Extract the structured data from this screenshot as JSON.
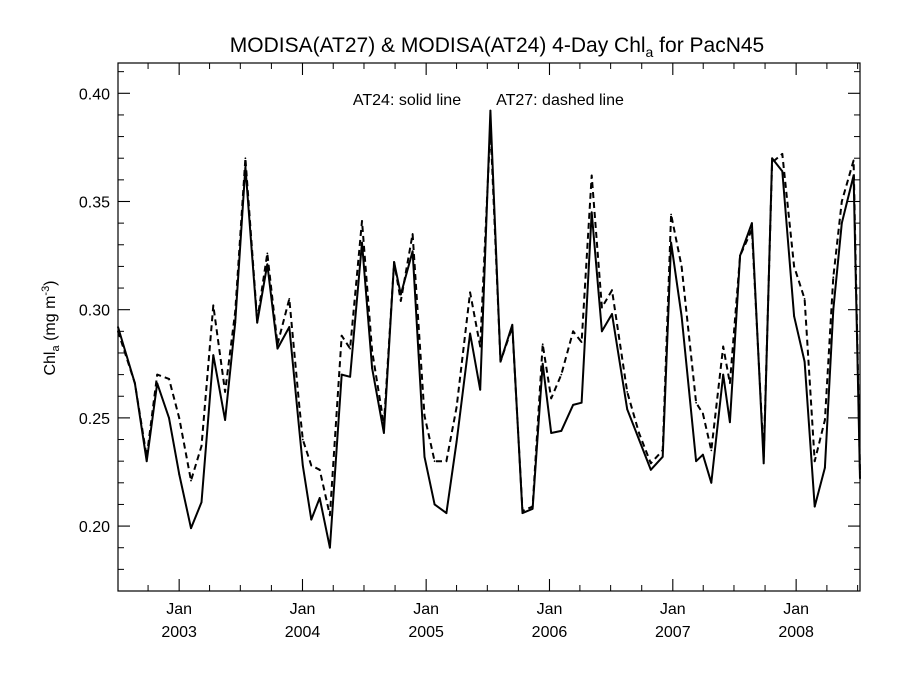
{
  "chart_data": {
    "type": "line",
    "title": "MODISA(AT27) & MODISA(AT24) 4-Day Chl",
    "title_subscript": "a",
    "title_suffix": " for PacN45",
    "ylabel": "Chl",
    "ylabel_subscript": "a",
    "ylabel_units": " (mg m",
    "ylabel_units_sup": "-3",
    "ylabel_units_close": ")",
    "annotation_solid": "AT24: solid line",
    "annotation_dashed": "AT27: dashed line",
    "ylim": [
      0.17,
      0.414
    ],
    "y_ticks": [
      {
        "value": 0.2,
        "label": "0.20"
      },
      {
        "value": 0.25,
        "label": "0.25"
      },
      {
        "value": 0.3,
        "label": "0.30"
      },
      {
        "value": 0.35,
        "label": "0.35"
      },
      {
        "value": 0.4,
        "label": "0.40"
      }
    ],
    "xlim": [
      "2002-07-04",
      "2008-07-08"
    ],
    "x_ticks": [
      {
        "date": "2003-01-01",
        "month": "Jan",
        "year": "2003"
      },
      {
        "date": "2004-01-01",
        "month": "Jan",
        "year": "2004"
      },
      {
        "date": "2005-01-01",
        "month": "Jan",
        "year": "2005"
      },
      {
        "date": "2006-01-01",
        "month": "Jan",
        "year": "2006"
      },
      {
        "date": "2007-01-01",
        "month": "Jan",
        "year": "2007"
      },
      {
        "date": "2008-01-01",
        "month": "Jan",
        "year": "2008"
      }
    ],
    "series": [
      {
        "name": "AT24",
        "style": "solid",
        "x": [
          "2002-07-04",
          "2002-08-23",
          "2002-09-27",
          "2002-10-28",
          "2002-12-02",
          "2003-01-01",
          "2003-02-05",
          "2003-03-08",
          "2003-04-12",
          "2003-05-17",
          "2003-06-16",
          "2003-07-16",
          "2003-08-20",
          "2003-09-19",
          "2003-10-19",
          "2003-11-23",
          "2003-12-23",
          "2004-01-02",
          "2004-01-27",
          "2004-02-21",
          "2004-03-22",
          "2004-04-26",
          "2004-05-21",
          "2004-06-25",
          "2004-07-25",
          "2004-08-29",
          "2004-09-28",
          "2004-10-18",
          "2004-11-22",
          "2004-12-27",
          "2005-01-26",
          "2005-03-02",
          "2005-04-01",
          "2005-05-11",
          "2005-06-10",
          "2005-07-10",
          "2005-08-09",
          "2005-09-13",
          "2005-10-13",
          "2005-11-12",
          "2005-12-12",
          "2006-01-06",
          "2006-02-05",
          "2006-03-12",
          "2006-04-06",
          "2006-05-06",
          "2006-06-05",
          "2006-07-05",
          "2006-08-19",
          "2006-09-23",
          "2006-10-28",
          "2006-12-02",
          "2006-12-27",
          "2007-01-27",
          "2007-03-11",
          "2007-03-31",
          "2007-04-25",
          "2007-05-30",
          "2007-06-19",
          "2007-07-19",
          "2007-08-23",
          "2007-09-27",
          "2007-10-22",
          "2007-11-21",
          "2007-12-26",
          "2008-01-26",
          "2008-02-25",
          "2008-03-26",
          "2008-04-20",
          "2008-05-15",
          "2008-06-19",
          "2008-07-08"
        ],
        "values": [
          0.292,
          0.266,
          0.23,
          0.266,
          0.25,
          0.224,
          0.199,
          0.211,
          0.279,
          0.249,
          0.294,
          0.366,
          0.294,
          0.321,
          0.282,
          0.292,
          0.244,
          0.228,
          0.203,
          0.213,
          0.19,
          0.27,
          0.269,
          0.331,
          0.273,
          0.243,
          0.322,
          0.307,
          0.327,
          0.232,
          0.21,
          0.206,
          0.239,
          0.289,
          0.263,
          0.392,
          0.276,
          0.293,
          0.206,
          0.208,
          0.275,
          0.243,
          0.244,
          0.256,
          0.257,
          0.345,
          0.29,
          0.298,
          0.254,
          0.24,
          0.226,
          0.232,
          0.331,
          0.297,
          0.23,
          0.233,
          0.22,
          0.27,
          0.248,
          0.325,
          0.34,
          0.229,
          0.37,
          0.364,
          0.297,
          0.276,
          0.209,
          0.227,
          0.3,
          0.34,
          0.362,
          0.222
        ]
      },
      {
        "name": "AT27",
        "style": "dashed",
        "x": [
          "2002-07-04",
          "2002-08-23",
          "2002-09-27",
          "2002-10-28",
          "2002-12-02",
          "2003-01-01",
          "2003-02-05",
          "2003-03-08",
          "2003-04-12",
          "2003-05-17",
          "2003-06-16",
          "2003-07-16",
          "2003-08-20",
          "2003-09-19",
          "2003-10-19",
          "2003-11-23",
          "2003-12-23",
          "2004-01-02",
          "2004-01-27",
          "2004-02-21",
          "2004-03-22",
          "2004-04-26",
          "2004-05-21",
          "2004-06-25",
          "2004-07-25",
          "2004-08-29",
          "2004-09-28",
          "2004-10-18",
          "2004-11-22",
          "2004-12-27",
          "2005-01-26",
          "2005-03-02",
          "2005-04-01",
          "2005-05-11",
          "2005-06-10",
          "2005-07-10",
          "2005-08-09",
          "2005-09-13",
          "2005-10-13",
          "2005-11-12",
          "2005-12-12",
          "2006-01-06",
          "2006-02-05",
          "2006-03-12",
          "2006-04-06",
          "2006-05-06",
          "2006-06-05",
          "2006-07-05",
          "2006-08-19",
          "2006-09-23",
          "2006-10-28",
          "2006-12-02",
          "2006-12-27",
          "2007-01-27",
          "2007-03-11",
          "2007-03-31",
          "2007-04-25",
          "2007-05-30",
          "2007-06-19",
          "2007-07-19",
          "2007-08-23",
          "2007-09-27",
          "2007-10-22",
          "2007-11-21",
          "2007-12-26",
          "2008-01-26",
          "2008-02-25",
          "2008-03-26",
          "2008-04-20",
          "2008-05-15",
          "2008-06-19",
          "2008-07-08"
        ],
        "values": [
          0.29,
          0.266,
          0.232,
          0.27,
          0.268,
          0.25,
          0.221,
          0.237,
          0.302,
          0.262,
          0.299,
          0.37,
          0.295,
          0.326,
          0.284,
          0.305,
          0.255,
          0.24,
          0.228,
          0.226,
          0.205,
          0.288,
          0.282,
          0.341,
          0.281,
          0.247,
          0.322,
          0.304,
          0.335,
          0.251,
          0.23,
          0.23,
          0.255,
          0.308,
          0.283,
          0.385,
          0.276,
          0.292,
          0.207,
          0.209,
          0.284,
          0.259,
          0.27,
          0.29,
          0.285,
          0.362,
          0.301,
          0.309,
          0.262,
          0.243,
          0.229,
          0.235,
          0.344,
          0.32,
          0.257,
          0.252,
          0.235,
          0.283,
          0.266,
          0.325,
          0.337,
          0.232,
          0.368,
          0.372,
          0.32,
          0.305,
          0.23,
          0.249,
          0.315,
          0.35,
          0.369,
          0.225
        ]
      }
    ]
  }
}
